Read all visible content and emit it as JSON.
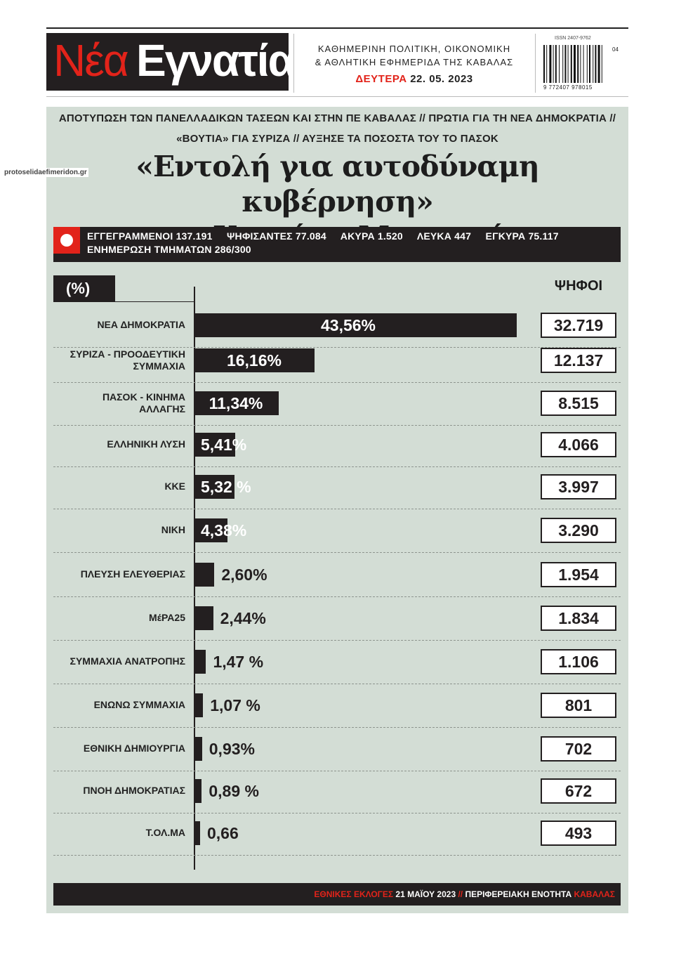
{
  "masthead": {
    "logo_part1": "Νέα",
    "logo_part2": "Εγνατία",
    "tagline_line1": "ΚΑΘΗΜΕΡΙΝΗ ΠΟΛΙΤΙΚΗ, ΟΙΚΟΝΟΜΙΚΗ",
    "tagline_line2": "& ΑΘΛΗΤΙΚΗ ΕΦΗΜΕΡΙΔΑ ΤΗΣ ΚΑΒΑΛΑΣ",
    "day": "ΔΕΥΤΕΡΑ",
    "date": "22. 05. 2023",
    "issn": "ISSN 2407-9762",
    "barcode_number": "9 772407 978015",
    "barcode_ext": "04"
  },
  "watermark": "protoselidaefimeridon.gr",
  "kicker": {
    "line1": "ΑΠΟΤΥΠΩΣΗ ΤΩΝ ΠΑΝΕΛΛΑΔΙΚΩΝ ΤΑΣΕΩΝ ΚΑΙ ΣΤΗΝ ΠΕ ΚΑΒΑΛΑΣ // ΠΡΩΤΙΑ ΓΙΑ ΤΗ ΝΕΑ ΔΗΜΟΚΡΑΤΙΑ //",
    "line2": "«ΒΟΥΤΙΑ» ΓΙΑ ΣΥΡΙΖΑ // ΑΥΞΗΣΕ ΤΑ ΠΟΣΟΣΤΑ ΤΟΥ ΤΟ ΠΑΣΟΚ"
  },
  "headline": {
    "line1": "«Εντολή για αυτοδύναμη κυβέρνηση»",
    "line2": "στον Κυριάκο  Μητσοτάκη"
  },
  "stats": {
    "line1": "ΕΓΓΕΓΡΑΜΜΕΝΟΙ 137.191     ΨΗΦΙΣΑΝΤΕΣ 77.084     ΑΚΥΡΑ 1.520     ΛΕΥΚΑ 447     ΕΓΚΥΡΑ 75.117",
    "line2": "ΕΝΗΜΕΡΩΣΗ ΤΜΗΜΑΤΩΝ 286/300"
  },
  "chart_labels": {
    "percent_header": "(%)",
    "votes_header": "ΨΗΦΟΙ"
  },
  "chart_data": {
    "type": "bar",
    "orientation": "horizontal",
    "categories": [
      "ΝΕΑ ΔΗΜΟΚΡΑΤΙΑ",
      "ΣΥΡΙΖΑ - ΠΡΟΟΔΕΥΤΙΚΗ ΣΥΜΜΑΧΙΑ",
      "ΠΑΣΟΚ - ΚΙΝΗΜΑ ΑΛΛΑΓΗΣ",
      "ΕΛΛΗΝΙΚΗ ΛΥΣΗ",
      "ΚΚΕ",
      "ΝΙΚΗ",
      "ΠΛΕΥΣΗ ΕΛΕΥΘΕΡΙΑΣ",
      "ΜέΡΑ25",
      "ΣΥΜΜΑΧΙΑ ΑΝΑΤΡΟΠΗΣ",
      "ΕΝΩΝΩ ΣΥΜΜΑΧΙΑ",
      "ΕΘΝΙΚΗ ΔΗΜΙΟΥΡΓΙΑ",
      "ΠΝΟΗ ΔΗΜΟΚΡΑΤΙΑΣ",
      "Τ.ΟΛ.ΜΑ"
    ],
    "values": [
      43.56,
      16.16,
      11.34,
      5.41,
      5.32,
      4.38,
      2.6,
      2.44,
      1.47,
      1.07,
      0.93,
      0.89,
      0.66
    ],
    "value_labels": [
      "43,56%",
      "16,16%",
      "11,34%",
      "5,41%",
      "5,32 %",
      "4,38%",
      "2,60%",
      "2,44%",
      "1,47 %",
      "1,07 %",
      "0,93%",
      "0,89 %",
      "0,66"
    ],
    "votes": [
      "32.719",
      "12.137",
      "8.515",
      "4.066",
      "3.997",
      "3.290",
      "1.954",
      "1.834",
      "1.106",
      "801",
      "702",
      "672",
      "493"
    ],
    "bar_color": "#231f20"
  },
  "footer": {
    "part1": "ΕΘΝΙΚΕΣ ΕΚΛΟΓΕΣ",
    "part2": " 21 ΜΑΪΟΥ 2023 ",
    "part3": "//",
    "part4": " ΠΕΡΙΦΕΡΕΙΑΚΗ ΕΝΟΤΗΤΑ ",
    "part5": "ΚΑΒΑΛΑΣ"
  },
  "colors": {
    "accent_red": "#e2231a",
    "dark": "#231f20",
    "panel_bg": "#d3ddd5"
  }
}
